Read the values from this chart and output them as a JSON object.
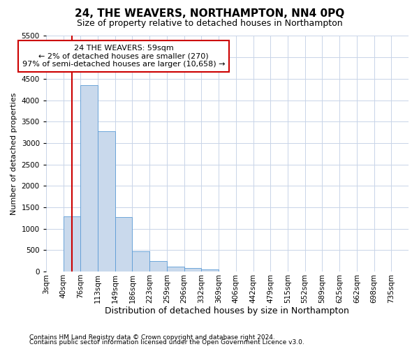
{
  "title": "24, THE WEAVERS, NORTHAMPTON, NN4 0PQ",
  "subtitle": "Size of property relative to detached houses in Northampton",
  "xlabel": "Distribution of detached houses by size in Northampton",
  "ylabel": "Number of detached properties",
  "bar_categories": [
    "3sqm",
    "40sqm",
    "76sqm",
    "113sqm",
    "149sqm",
    "186sqm",
    "223sqm",
    "259sqm",
    "296sqm",
    "332sqm",
    "369sqm",
    "406sqm",
    "442sqm",
    "479sqm",
    "515sqm",
    "552sqm",
    "589sqm",
    "625sqm",
    "662sqm",
    "698sqm",
    "735sqm"
  ],
  "bar_values": [
    0,
    1280,
    4350,
    3280,
    1270,
    480,
    240,
    110,
    75,
    50,
    0,
    0,
    0,
    0,
    0,
    0,
    0,
    0,
    0,
    0,
    0
  ],
  "bar_color": "#c9d9ec",
  "bar_edge_color": "#5b9bd5",
  "vline_x": 1.5,
  "vline_color": "#cc0000",
  "annotation_line1": "24 THE WEAVERS: 59sqm",
  "annotation_line2": "← 2% of detached houses are smaller (270)",
  "annotation_line3": "97% of semi-detached houses are larger (10,658) →",
  "annotation_box_color": "#ffffff",
  "annotation_box_edge": "#cc0000",
  "ylim": [
    0,
    5500
  ],
  "yticks": [
    0,
    500,
    1000,
    1500,
    2000,
    2500,
    3000,
    3500,
    4000,
    4500,
    5000,
    5500
  ],
  "footnote1": "Contains HM Land Registry data © Crown copyright and database right 2024.",
  "footnote2": "Contains public sector information licensed under the Open Government Licence v3.0.",
  "background_color": "#ffffff",
  "grid_color": "#c8d4e8",
  "title_fontsize": 11,
  "subtitle_fontsize": 9,
  "xlabel_fontsize": 9,
  "ylabel_fontsize": 8,
  "tick_fontsize": 7.5,
  "footnote_fontsize": 6.5
}
